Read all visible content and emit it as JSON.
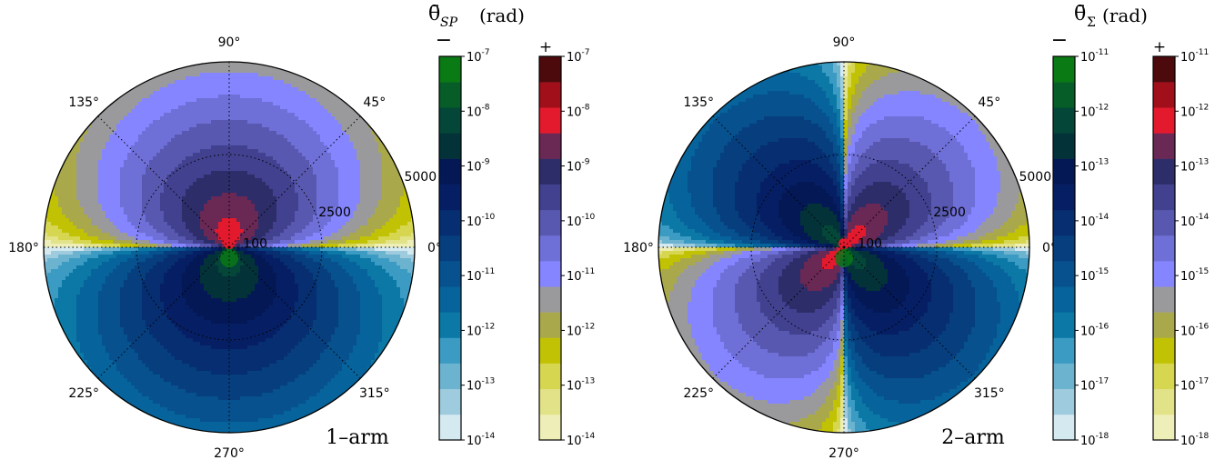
{
  "chart_data": [
    {
      "type": "heatmap",
      "subtype": "polar-contour",
      "panel_label": "1–arm",
      "angle_ticks": [
        "0°",
        "45°",
        "90°",
        "135°",
        "180°",
        "225°",
        "270°",
        "315°"
      ],
      "radial_ticks": [
        "100",
        "2500",
        "5000"
      ],
      "radial_range": [
        0,
        5000
      ],
      "grid": true,
      "colorbar_title": "θ̄",
      "colorbar_title_sub": "SP",
      "colorbar_title_unit": "(rad)",
      "colorbar_neg_sign": "−",
      "colorbar_pos_sign": "+",
      "colorbar_exponents": [
        "-7",
        "-8",
        "-9",
        "-10",
        "-11",
        "-12",
        "-13",
        "-14"
      ],
      "colorbar_base": "10",
      "levels_log10": [
        -14,
        -13.5,
        -13,
        -12.5,
        -12,
        -11.5,
        -11,
        -10.5,
        -10,
        -9.5,
        -9,
        -8.5,
        -8,
        -7.5,
        -7
      ],
      "value_model": "theta(r, phi) with negative values for phi in (180°, 360°), positive for (0°, 180°); sign shown by colorbar",
      "decades_at_center": -7,
      "decades_at_edge_axis": -14
    },
    {
      "type": "heatmap",
      "subtype": "polar-contour",
      "panel_label": "2–arm",
      "angle_ticks": [
        "0°",
        "45°",
        "90°",
        "135°",
        "180°",
        "225°",
        "270°",
        "315°"
      ],
      "radial_ticks": [
        "100",
        "2500",
        "5000"
      ],
      "radial_range": [
        0,
        5000
      ],
      "grid": true,
      "colorbar_title": "θ̄",
      "colorbar_title_sub": "Σ",
      "colorbar_title_unit": "(rad)",
      "colorbar_neg_sign": "−",
      "colorbar_pos_sign": "+",
      "colorbar_exponents": [
        "-11",
        "-12",
        "-13",
        "-14",
        "-15",
        "-16",
        "-17",
        "-18"
      ],
      "colorbar_base": "10",
      "levels_log10": [
        -18,
        -17.5,
        -17,
        -16.5,
        -16,
        -15.5,
        -15,
        -14.5,
        -14,
        -13.5,
        -13,
        -12.5,
        -12,
        -11.5,
        -11
      ],
      "value_model": "quadrupolar theta(r, phi) with sign of sin(2 phi); sign shown by colorbar"
    }
  ],
  "colormaps": {
    "negative": [
      "#d4e9f0",
      "#9ecbdd",
      "#6cb3d0",
      "#3b9bc3",
      "#0b78a5",
      "#07639b",
      "#06518e",
      "#063e7e",
      "#062e70",
      "#061f64",
      "#041855",
      "#033239",
      "#044638",
      "#065d27",
      "#0a7a14"
    ],
    "positive": [
      "#eeeeb8",
      "#e2e288",
      "#d6d650",
      "#c2c204",
      "#a9a94c",
      "#9a9a9c",
      "#8585ff",
      "#6f6fd8",
      "#5858b0",
      "#414190",
      "#2d2d6a",
      "#6a2854",
      "#e31a2e",
      "#a10f1a",
      "#4d0a0d"
    ]
  }
}
